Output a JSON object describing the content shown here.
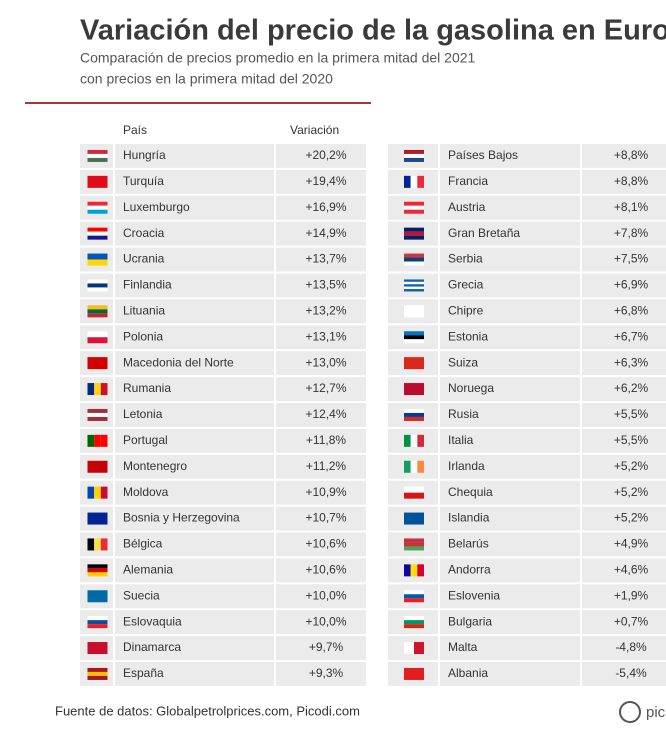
{
  "header": {
    "title": "Variación del precio de la gasolina en Europ",
    "subtitle": [
      "Comparación de precios promedio en la primera mitad del 2021",
      "con precios en la primera mitad del 2020"
    ]
  },
  "table": {
    "columns": [
      "País",
      "Variación"
    ],
    "left": [
      [
        "Hungría",
        "+20,2%"
      ],
      [
        "Turquía",
        "+19,4%"
      ],
      [
        "Luxemburgo",
        "+16,9%"
      ],
      [
        "Croacia",
        "+14,9%"
      ],
      [
        "Ucrania",
        "+13,7%"
      ],
      [
        "Finlandia",
        "+13,5%"
      ],
      [
        "Lituania",
        "+13,2%"
      ],
      [
        "Polonia",
        "+13,1%"
      ],
      [
        "Macedonia del Norte",
        "+13,0%"
      ],
      [
        "Rumania",
        "+12,7%"
      ],
      [
        "Letonia",
        "+12,4%"
      ],
      [
        "Portugal",
        "+11,8%"
      ],
      [
        "Montenegro",
        "+11,2%"
      ],
      [
        "Moldova",
        "+10,9%"
      ],
      [
        "Bosnia y Herzegovina",
        "+10,7%"
      ],
      [
        "Bélgica",
        "+10,6%"
      ],
      [
        "Alemania",
        "+10,6%"
      ],
      [
        "Suecia",
        "+10,0%"
      ],
      [
        "Eslovaquia",
        "+10,0%"
      ],
      [
        "Dinamarca",
        "+9,7%"
      ],
      [
        "España",
        "+9,3%"
      ]
    ],
    "right": [
      [
        "Países Bajos",
        "+8,8%"
      ],
      [
        "Francia",
        "+8,8%"
      ],
      [
        "Austria",
        "+8,1%"
      ],
      [
        "Gran Bretaña",
        "+7,8%"
      ],
      [
        "Serbia",
        "+7,5%"
      ],
      [
        "Grecia",
        "+6,9%"
      ],
      [
        "Chipre",
        "+6,8%"
      ],
      [
        "Estonia",
        "+6,7%"
      ],
      [
        "Suiza",
        "+6,3%"
      ],
      [
        "Noruega",
        "+6,2%"
      ],
      [
        "Rusia",
        "+5,5%"
      ],
      [
        "Italia",
        "+5,5%"
      ],
      [
        "Irlanda",
        "+5,2%"
      ],
      [
        "Chequia",
        "+5,2%"
      ],
      [
        "Islandia",
        "+5,2%"
      ],
      [
        "Belarús",
        "+4,9%"
      ],
      [
        "Andorra",
        "+4,6%"
      ],
      [
        "Eslovenia",
        "+1,9%"
      ],
      [
        "Bulgaria",
        "+0,7%"
      ],
      [
        "Malta",
        "-4,8%"
      ],
      [
        "Albania",
        "-5,4%"
      ]
    ]
  },
  "footer": {
    "source": "Fuente de datos: Globalpetrolprices.com, Picodi.com",
    "logo": "pic"
  }
}
